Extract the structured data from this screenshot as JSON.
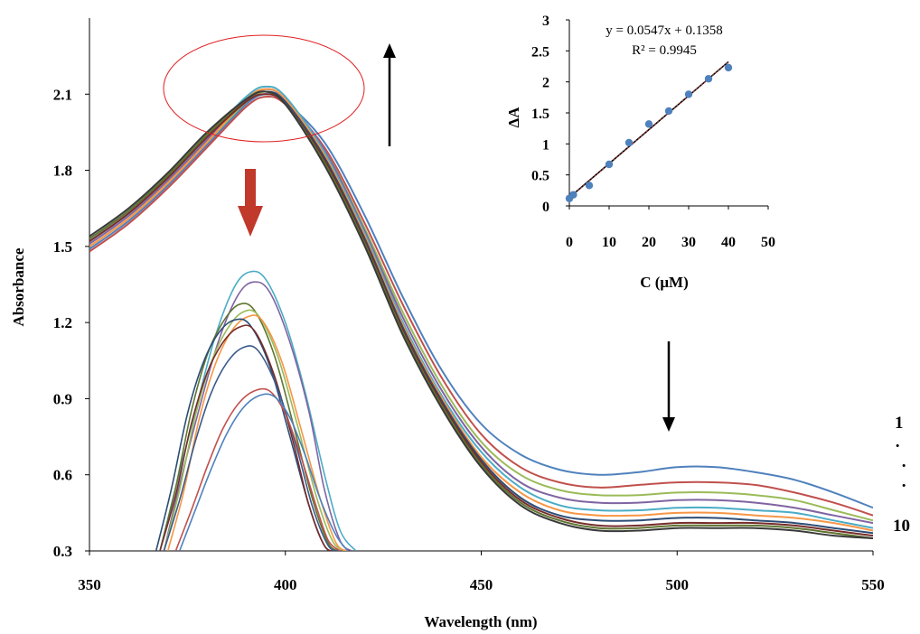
{
  "chart_data": [
    {
      "type": "line",
      "title": "",
      "xlabel": "Wavelength (nm)",
      "ylabel": "Absorbance",
      "xlim": [
        350,
        550
      ],
      "ylim": [
        0.3,
        2.4
      ],
      "xticks": [
        350,
        400,
        450,
        500,
        550
      ],
      "yticks": [
        0.3,
        0.6,
        0.9,
        1.2,
        1.5,
        1.8,
        2.1
      ],
      "xtick_labels": [
        "350",
        "400",
        "450",
        "500",
        "550"
      ],
      "ytick_labels": [
        "0.3",
        "0.6",
        "0.9",
        "1.2",
        "1.5",
        "1.8",
        "2.1"
      ],
      "grid": false,
      "series_labels": {
        "first": "1",
        "last": "10",
        "dots": [
          "·",
          "·",
          "·"
        ]
      },
      "series": [
        {
          "color": "#4F81BD",
          "x": [
            350,
            360,
            370,
            380,
            390,
            395,
            400,
            410,
            420,
            430,
            440,
            450,
            460,
            470,
            480,
            490,
            500,
            510,
            520,
            530,
            540,
            550
          ],
          "y": [
            1.49,
            1.6,
            1.74,
            1.9,
            2.06,
            2.1,
            2.07,
            1.91,
            1.63,
            1.3,
            1.01,
            0.8,
            0.68,
            0.62,
            0.6,
            0.61,
            0.63,
            0.63,
            0.61,
            0.58,
            0.53,
            0.47
          ]
        },
        {
          "color": "#C0504D",
          "x": [
            350,
            360,
            370,
            380,
            390,
            395,
            400,
            410,
            420,
            430,
            440,
            450,
            460,
            470,
            480,
            490,
            500,
            510,
            520,
            530,
            540,
            550
          ],
          "y": [
            1.48,
            1.59,
            1.73,
            1.89,
            2.05,
            2.09,
            2.06,
            1.89,
            1.6,
            1.27,
            0.98,
            0.76,
            0.63,
            0.57,
            0.55,
            0.56,
            0.57,
            0.57,
            0.56,
            0.53,
            0.49,
            0.44
          ]
        },
        {
          "color": "#9BBB59",
          "x": [
            350,
            360,
            370,
            380,
            390,
            395,
            400,
            410,
            420,
            430,
            440,
            450,
            460,
            470,
            480,
            490,
            500,
            510,
            520,
            530,
            540,
            550
          ],
          "y": [
            1.5,
            1.61,
            1.75,
            1.91,
            2.07,
            2.11,
            2.07,
            1.88,
            1.58,
            1.24,
            0.95,
            0.73,
            0.6,
            0.54,
            0.52,
            0.52,
            0.53,
            0.53,
            0.52,
            0.5,
            0.46,
            0.42
          ]
        },
        {
          "color": "#8064A2",
          "x": [
            350,
            360,
            370,
            380,
            390,
            395,
            400,
            410,
            420,
            430,
            440,
            450,
            460,
            470,
            480,
            490,
            500,
            510,
            520,
            530,
            540,
            550
          ],
          "y": [
            1.51,
            1.62,
            1.76,
            1.92,
            2.08,
            2.12,
            2.08,
            1.88,
            1.57,
            1.22,
            0.93,
            0.71,
            0.57,
            0.51,
            0.49,
            0.49,
            0.5,
            0.5,
            0.49,
            0.47,
            0.44,
            0.41
          ]
        },
        {
          "color": "#4BACC6",
          "x": [
            350,
            360,
            370,
            380,
            390,
            395,
            400,
            410,
            420,
            430,
            440,
            450,
            460,
            470,
            480,
            490,
            500,
            510,
            520,
            530,
            540,
            550
          ],
          "y": [
            1.52,
            1.63,
            1.77,
            1.93,
            2.09,
            2.13,
            2.09,
            1.87,
            1.56,
            1.2,
            0.91,
            0.69,
            0.55,
            0.48,
            0.46,
            0.46,
            0.47,
            0.47,
            0.46,
            0.45,
            0.42,
            0.39
          ]
        },
        {
          "color": "#F79646",
          "x": [
            350,
            360,
            370,
            380,
            390,
            395,
            400,
            410,
            420,
            430,
            440,
            450,
            460,
            470,
            480,
            490,
            500,
            510,
            520,
            530,
            540,
            550
          ],
          "y": [
            1.5,
            1.61,
            1.75,
            1.91,
            2.08,
            2.12,
            2.08,
            1.86,
            1.55,
            1.19,
            0.9,
            0.67,
            0.53,
            0.46,
            0.44,
            0.44,
            0.45,
            0.45,
            0.44,
            0.43,
            0.41,
            0.38
          ]
        },
        {
          "color": "#2C4D75",
          "x": [
            350,
            360,
            370,
            380,
            390,
            395,
            400,
            410,
            420,
            430,
            440,
            450,
            460,
            470,
            480,
            490,
            500,
            510,
            520,
            530,
            540,
            550
          ],
          "y": [
            1.53,
            1.64,
            1.78,
            1.94,
            2.08,
            2.11,
            2.07,
            1.85,
            1.54,
            1.18,
            0.89,
            0.66,
            0.51,
            0.44,
            0.42,
            0.42,
            0.43,
            0.43,
            0.42,
            0.41,
            0.39,
            0.37
          ]
        },
        {
          "color": "#772C2A",
          "x": [
            350,
            360,
            370,
            380,
            390,
            395,
            400,
            410,
            420,
            430,
            440,
            450,
            460,
            470,
            480,
            490,
            500,
            510,
            520,
            530,
            540,
            550
          ],
          "y": [
            1.52,
            1.63,
            1.77,
            1.93,
            2.07,
            2.1,
            2.06,
            1.84,
            1.53,
            1.17,
            0.88,
            0.65,
            0.5,
            0.43,
            0.4,
            0.4,
            0.41,
            0.41,
            0.41,
            0.4,
            0.38,
            0.36
          ]
        },
        {
          "color": "#5F7530",
          "x": [
            350,
            360,
            370,
            380,
            390,
            395,
            400,
            410,
            420,
            430,
            440,
            450,
            460,
            470,
            480,
            490,
            500,
            510,
            520,
            530,
            540,
            550
          ],
          "y": [
            1.53,
            1.64,
            1.78,
            1.94,
            2.08,
            2.11,
            2.06,
            1.83,
            1.52,
            1.16,
            0.87,
            0.64,
            0.49,
            0.42,
            0.39,
            0.39,
            0.4,
            0.4,
            0.4,
            0.39,
            0.37,
            0.35
          ]
        },
        {
          "color": "#3A3A3A",
          "x": [
            350,
            360,
            370,
            380,
            390,
            395,
            400,
            410,
            420,
            430,
            440,
            450,
            460,
            470,
            480,
            490,
            500,
            510,
            520,
            530,
            540,
            550
          ],
          "y": [
            1.54,
            1.65,
            1.79,
            1.95,
            2.08,
            2.11,
            2.06,
            1.82,
            1.51,
            1.15,
            0.86,
            0.63,
            0.48,
            0.41,
            0.38,
            0.38,
            0.39,
            0.39,
            0.39,
            0.38,
            0.36,
            0.35
          ]
        }
      ],
      "zoom_inset_series": [
        {
          "color": "#4BACC6",
          "x": [
            368,
            372,
            377,
            382,
            387,
            391,
            395,
            400,
            405,
            410,
            414,
            418
          ],
          "y": [
            0.3,
            0.55,
            0.85,
            1.14,
            1.34,
            1.4,
            1.37,
            1.2,
            0.93,
            0.6,
            0.38,
            0.3
          ]
        },
        {
          "color": "#8064A2",
          "x": [
            369,
            373,
            378,
            383,
            388,
            392,
            396,
            401,
            406,
            410,
            414,
            417
          ],
          "y": [
            0.3,
            0.56,
            0.86,
            1.13,
            1.31,
            1.36,
            1.32,
            1.13,
            0.85,
            0.54,
            0.34,
            0.3
          ]
        },
        {
          "color": "#5F7530",
          "x": [
            368,
            372,
            376,
            380,
            384,
            388,
            392,
            397,
            402,
            407,
            411,
            414
          ],
          "y": [
            0.3,
            0.55,
            0.85,
            1.07,
            1.2,
            1.27,
            1.25,
            1.08,
            0.8,
            0.5,
            0.33,
            0.3
          ]
        },
        {
          "color": "#9BBB59",
          "x": [
            369,
            373,
            377,
            381,
            385,
            389,
            393,
            398,
            403,
            408,
            412,
            415
          ],
          "y": [
            0.3,
            0.54,
            0.83,
            1.04,
            1.17,
            1.24,
            1.23,
            1.07,
            0.8,
            0.51,
            0.34,
            0.3
          ]
        },
        {
          "color": "#F79646",
          "x": [
            370,
            374,
            378,
            382,
            386,
            390,
            394,
            399,
            404,
            409,
            413,
            416
          ],
          "y": [
            0.3,
            0.53,
            0.82,
            1.03,
            1.16,
            1.22,
            1.21,
            1.05,
            0.78,
            0.5,
            0.33,
            0.3
          ]
        },
        {
          "color": "#2C4D75",
          "x": [
            367,
            371,
            375,
            379,
            383,
            387,
            391,
            396,
            401,
            406,
            410,
            413
          ],
          "y": [
            0.3,
            0.55,
            0.84,
            1.04,
            1.16,
            1.21,
            1.19,
            1.03,
            0.76,
            0.48,
            0.32,
            0.3
          ]
        },
        {
          "color": "#772C2A",
          "x": [
            368,
            372,
            376,
            380,
            384,
            388,
            392,
            397,
            402,
            406,
            410,
            413
          ],
          "y": [
            0.3,
            0.52,
            0.8,
            1.0,
            1.12,
            1.18,
            1.17,
            1.0,
            0.73,
            0.48,
            0.32,
            0.3
          ]
        },
        {
          "color": "#3A5A8C",
          "x": [
            369,
            373,
            377,
            381,
            385,
            389,
            393,
            398,
            403,
            407,
            411,
            414
          ],
          "y": [
            0.3,
            0.5,
            0.73,
            0.92,
            1.04,
            1.1,
            1.09,
            0.94,
            0.7,
            0.47,
            0.32,
            0.3
          ]
        },
        {
          "color": "#C0504D",
          "x": [
            372,
            376,
            380,
            384,
            388,
            392,
            396,
            400,
            404,
            408,
            411,
            414
          ],
          "y": [
            0.3,
            0.46,
            0.63,
            0.78,
            0.88,
            0.93,
            0.93,
            0.84,
            0.67,
            0.47,
            0.34,
            0.3
          ]
        },
        {
          "color": "#4F81BD",
          "x": [
            373,
            377,
            381,
            385,
            389,
            393,
            397,
            401,
            405,
            409,
            413,
            416
          ],
          "y": [
            0.3,
            0.46,
            0.62,
            0.76,
            0.86,
            0.91,
            0.91,
            0.83,
            0.68,
            0.5,
            0.36,
            0.3
          ]
        }
      ],
      "annotations": {
        "highlight": "ellipse",
        "highlight_color": "#E02020",
        "arrow_up_color": "#000000",
        "arrow_down_color": "#000000",
        "block_arrow_color": "#C0392B"
      }
    },
    {
      "type": "scatter",
      "title": "",
      "xlabel": "C (μM)",
      "ylabel": "ΔA",
      "xlim": [
        0,
        50
      ],
      "ylim": [
        0,
        3
      ],
      "xticks": [
        0,
        10,
        20,
        30,
        40,
        50
      ],
      "yticks": [
        0,
        0.5,
        1,
        1.5,
        2,
        2.5,
        3
      ],
      "xtick_labels": [
        "0",
        "10",
        "20",
        "30",
        "40",
        "50"
      ],
      "ytick_labels": [
        "0",
        "0.5",
        "1",
        "1.5",
        "2",
        "2.5",
        "3"
      ],
      "grid": false,
      "point_color": "#4F81BD",
      "x": [
        0,
        1,
        5,
        10,
        15,
        20,
        25,
        30,
        35,
        40
      ],
      "y": [
        0.12,
        0.18,
        0.33,
        0.67,
        1.02,
        1.32,
        1.53,
        1.8,
        2.05,
        2.23
      ],
      "trendline": {
        "slope": 0.0547,
        "intercept": 0.1358,
        "x_range": [
          0,
          40
        ],
        "color": "#000000",
        "overlay_color": "#E04040",
        "equation": "y = 0.0547x + 0.1358",
        "r_squared": "R² = 0.9945"
      }
    }
  ]
}
